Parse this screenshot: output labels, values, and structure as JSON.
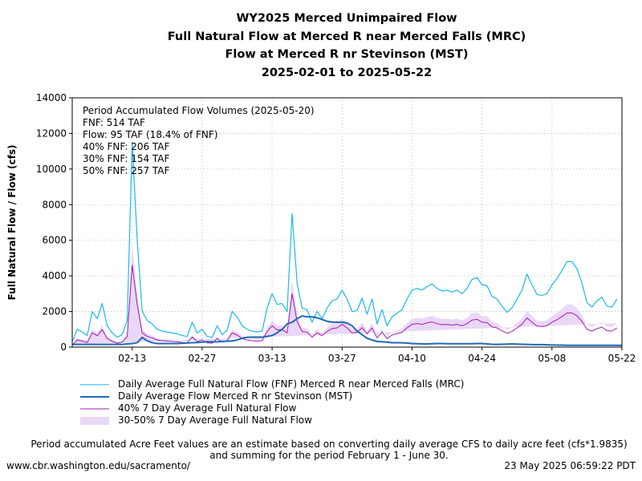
{
  "header": {
    "title_lines": [
      "WY2025 Merced Unimpaired Flow",
      "Full Natural Flow at Merced R near Merced Falls (MRC)",
      "Flow at Merced R nr Stevinson (MST)",
      "2025-02-01 to 2025-05-22"
    ]
  },
  "annotation": {
    "lines": [
      "Period Accumulated Flow Volumes (2025-05-20)",
      "FNF: 514 TAF",
      "Flow: 95 TAF (18.4% of FNF)",
      "40% FNF: 206 TAF",
      "30% FNF: 154 TAF",
      "50% FNF: 257 TAF"
    ]
  },
  "legend": {
    "items": [
      {
        "label": "Daily Average Full Natural Flow (FNF) Merced R near Merced Falls (MRC)",
        "color": "#1ab8ee",
        "kind": "line-thin"
      },
      {
        "label": "Daily Average Flow Merced R nr Stevinson (MST)",
        "color": "#1f6ab5",
        "kind": "line-thick"
      },
      {
        "label": "40% 7 Day Average Full Natural Flow",
        "color": "#a11ab5",
        "kind": "line-thin"
      },
      {
        "label": "30-50% 7 Day Average Full Natural Flow",
        "color": "#ead7f6",
        "kind": "band"
      }
    ]
  },
  "note": {
    "line1": "Period accumulated Acre Feet values are an estimate based on converting daily average CFS to daily acre feet (cfs*1.9835)",
    "line2": "and summing for the period February 1 - June 30."
  },
  "footer": {
    "url": "www.cbr.washington.edu/sacramento/",
    "timestamp": "23 May 2025 06:59:22 PDT"
  },
  "chart_data": {
    "type": "line",
    "x_start": "2025-02-01",
    "x_end": "2025-05-22",
    "ylabel": "Full Natural Flow / Flow (cfs)",
    "xlabel": "",
    "ylim": [
      0,
      14000
    ],
    "y_ticks": [
      0,
      2000,
      4000,
      6000,
      8000,
      10000,
      12000,
      14000
    ],
    "x_ticks": [
      "02-13",
      "02-27",
      "03-13",
      "03-27",
      "04-10",
      "04-24",
      "05-08",
      "05-22"
    ],
    "grid": true,
    "x_dates": [
      "2025-02-01",
      "2025-02-02",
      "2025-02-03",
      "2025-02-04",
      "2025-02-05",
      "2025-02-06",
      "2025-02-07",
      "2025-02-08",
      "2025-02-09",
      "2025-02-10",
      "2025-02-11",
      "2025-02-12",
      "2025-02-13",
      "2025-02-14",
      "2025-02-15",
      "2025-02-16",
      "2025-02-17",
      "2025-02-18",
      "2025-02-19",
      "2025-02-20",
      "2025-02-21",
      "2025-02-22",
      "2025-02-23",
      "2025-02-24",
      "2025-02-25",
      "2025-02-26",
      "2025-02-27",
      "2025-02-28",
      "2025-03-01",
      "2025-03-02",
      "2025-03-03",
      "2025-03-04",
      "2025-03-05",
      "2025-03-06",
      "2025-03-07",
      "2025-03-08",
      "2025-03-09",
      "2025-03-10",
      "2025-03-11",
      "2025-03-12",
      "2025-03-13",
      "2025-03-14",
      "2025-03-15",
      "2025-03-16",
      "2025-03-17",
      "2025-03-18",
      "2025-03-19",
      "2025-03-20",
      "2025-03-21",
      "2025-03-22",
      "2025-03-23",
      "2025-03-24",
      "2025-03-25",
      "2025-03-26",
      "2025-03-27",
      "2025-03-28",
      "2025-03-29",
      "2025-03-30",
      "2025-03-31",
      "2025-04-01",
      "2025-04-02",
      "2025-04-03",
      "2025-04-04",
      "2025-04-05",
      "2025-04-06",
      "2025-04-07",
      "2025-04-08",
      "2025-04-09",
      "2025-04-10",
      "2025-04-11",
      "2025-04-12",
      "2025-04-13",
      "2025-04-14",
      "2025-04-15",
      "2025-04-16",
      "2025-04-17",
      "2025-04-18",
      "2025-04-19",
      "2025-04-20",
      "2025-04-21",
      "2025-04-22",
      "2025-04-23",
      "2025-04-24",
      "2025-04-25",
      "2025-04-26",
      "2025-04-27",
      "2025-04-28",
      "2025-04-29",
      "2025-04-30",
      "2025-05-01",
      "2025-05-02",
      "2025-05-03",
      "2025-05-04",
      "2025-05-05",
      "2025-05-06",
      "2025-05-07",
      "2025-05-08",
      "2025-05-09",
      "2025-05-10",
      "2025-05-11",
      "2025-05-12",
      "2025-05-13",
      "2025-05-14",
      "2025-05-15",
      "2025-05-16",
      "2025-05-17",
      "2025-05-18",
      "2025-05-19",
      "2025-05-20",
      "2025-05-21",
      "2025-05-22"
    ],
    "series": [
      {
        "name": "Daily Average Full Natural Flow (FNF) Merced R near Merced Falls (MRC)",
        "color": "#1ab8ee",
        "width": 1.2,
        "values": [
          300,
          1000,
          850,
          650,
          2000,
          1600,
          2450,
          1200,
          800,
          550,
          700,
          1500,
          11500,
          6000,
          2000,
          1500,
          1300,
          1000,
          900,
          850,
          800,
          750,
          650,
          600,
          1400,
          800,
          1000,
          600,
          550,
          1200,
          700,
          950,
          2000,
          1700,
          1200,
          1000,
          900,
          850,
          900,
          2200,
          3000,
          2400,
          2450,
          2000,
          7500,
          3600,
          2200,
          2100,
          1400,
          2000,
          1600,
          2200,
          2600,
          2700,
          3200,
          2700,
          2000,
          2050,
          2750,
          1850,
          2700,
          1300,
          2100,
          1200,
          1700,
          1900,
          2100,
          2700,
          3200,
          3300,
          3200,
          3400,
          3550,
          3300,
          3150,
          3200,
          3100,
          3200,
          3000,
          3300,
          3800,
          3900,
          3500,
          3450,
          2850,
          2700,
          2300,
          1950,
          2200,
          2700,
          3200,
          4100,
          3500,
          2950,
          2900,
          3000,
          3500,
          3850,
          4300,
          4800,
          4800,
          4400,
          3600,
          2500,
          2250,
          2600,
          2800,
          2300,
          2250,
          2700
        ]
      },
      {
        "name": "Daily Average Flow Merced R nr Stevinson (MST)",
        "color": "#1f6ab5",
        "width": 2.0,
        "values": [
          150,
          150,
          150,
          150,
          150,
          150,
          150,
          150,
          150,
          150,
          150,
          180,
          200,
          250,
          550,
          350,
          250,
          200,
          200,
          200,
          200,
          200,
          220,
          230,
          250,
          260,
          280,
          300,
          300,
          300,
          320,
          330,
          350,
          400,
          500,
          550,
          560,
          560,
          560,
          600,
          650,
          800,
          1000,
          1300,
          1400,
          1600,
          1750,
          1700,
          1700,
          1650,
          1550,
          1450,
          1400,
          1400,
          1400,
          1350,
          1200,
          900,
          700,
          500,
          400,
          320,
          300,
          280,
          250,
          250,
          240,
          230,
          200,
          190,
          180,
          180,
          190,
          200,
          200,
          190,
          190,
          190,
          190,
          190,
          190,
          200,
          200,
          180,
          160,
          150,
          160,
          170,
          180,
          170,
          160,
          150,
          140,
          140,
          140,
          130,
          120,
          110,
          110,
          100,
          100,
          100,
          100,
          100,
          100,
          100,
          100,
          100,
          100,
          100,
          100
        ]
      },
      {
        "name": "40% 7 Day Average Full Natural Flow",
        "color": "#a11ab5",
        "width": 1.0,
        "values": [
          120,
          400,
          340,
          260,
          800,
          640,
          980,
          480,
          320,
          220,
          280,
          600,
          4600,
          2400,
          800,
          600,
          520,
          400,
          360,
          340,
          320,
          300,
          260,
          240,
          560,
          320,
          400,
          240,
          220,
          480,
          280,
          380,
          800,
          680,
          480,
          400,
          360,
          340,
          360,
          880,
          1200,
          960,
          980,
          800,
          3000,
          1440,
          880,
          840,
          560,
          800,
          640,
          880,
          1040,
          1080,
          1280,
          1080,
          800,
          820,
          1100,
          740,
          1080,
          520,
          840,
          480,
          680,
          760,
          840,
          1080,
          1280,
          1320,
          1280,
          1360,
          1420,
          1320,
          1260,
          1280,
          1240,
          1280,
          1200,
          1320,
          1520,
          1560,
          1400,
          1380,
          1140,
          1080,
          920,
          780,
          880,
          1080,
          1280,
          1640,
          1400,
          1180,
          1160,
          1200,
          1400,
          1540,
          1720,
          1920,
          1920,
          1760,
          1440,
          1000,
          900,
          1040,
          1120,
          920,
          900,
          1080
        ]
      },
      {
        "name": "30-50% 7 Day Average Full Natural Flow",
        "kind": "band",
        "color": "#ead7f6",
        "lower": [
          90,
          300,
          255,
          195,
          600,
          480,
          735,
          360,
          240,
          165,
          210,
          450,
          3450,
          1800,
          600,
          450,
          390,
          300,
          270,
          255,
          240,
          225,
          195,
          180,
          420,
          240,
          300,
          180,
          165,
          360,
          210,
          285,
          600,
          510,
          360,
          300,
          270,
          255,
          270,
          660,
          900,
          720,
          735,
          600,
          2250,
          1080,
          660,
          630,
          420,
          600,
          480,
          660,
          780,
          810,
          960,
          810,
          600,
          615,
          825,
          555,
          810,
          390,
          630,
          360,
          510,
          570,
          630,
          810,
          960,
          990,
          960,
          1020,
          1065,
          990,
          945,
          960,
          930,
          960,
          900,
          990,
          1140,
          1170,
          1050,
          1035,
          855,
          810,
          690,
          585,
          660,
          810,
          960,
          1230,
          1050,
          885,
          870,
          900,
          1050,
          1155,
          1290,
          1440,
          1440,
          1320,
          1080,
          750,
          675,
          780,
          840,
          690,
          675,
          810
        ],
        "upper": [
          150,
          500,
          425,
          325,
          1000,
          800,
          1225,
          600,
          400,
          275,
          350,
          750,
          5750,
          3000,
          1000,
          750,
          650,
          500,
          450,
          425,
          400,
          375,
          325,
          300,
          700,
          400,
          500,
          300,
          275,
          600,
          350,
          475,
          1000,
          850,
          600,
          500,
          450,
          425,
          450,
          1100,
          1500,
          1200,
          1225,
          1000,
          3750,
          1800,
          1100,
          1050,
          700,
          1000,
          800,
          1100,
          1300,
          1350,
          1600,
          1350,
          1000,
          1025,
          1375,
          925,
          1350,
          650,
          1050,
          600,
          850,
          950,
          1050,
          1350,
          1600,
          1650,
          1600,
          1700,
          1775,
          1650,
          1575,
          1600,
          1550,
          1600,
          1500,
          1650,
          1900,
          1950,
          1750,
          1725,
          1425,
          1350,
          1150,
          975,
          1100,
          1350,
          1600,
          2050,
          1750,
          1475,
          1450,
          1500,
          1750,
          1925,
          2150,
          2400,
          2400,
          2200,
          1800,
          1250,
          1125,
          1300,
          1400,
          1150,
          1125,
          1350
        ]
      }
    ]
  }
}
